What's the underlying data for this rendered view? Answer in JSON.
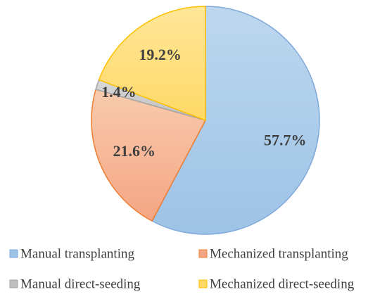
{
  "chart_data": {
    "type": "pie",
    "title": "",
    "series": [
      {
        "name": "Manual transplanting",
        "value": 57.7,
        "label": "57.7%",
        "color": "#9dc3e6",
        "color_light": "#bdd7ee",
        "stroke": "#7fa9d9"
      },
      {
        "name": "Mechanized transplanting",
        "value": 21.6,
        "label": "21.6%",
        "color": "#f4a583",
        "color_light": "#f8cbad",
        "stroke": "#ed7d31"
      },
      {
        "name": "Manual direct-seeding",
        "value": 1.4,
        "label": "1.4%",
        "color": "#bfbfbf",
        "color_light": "#d9d9d9",
        "stroke": "#a5a5a5"
      },
      {
        "name": "Mechanized direct-seeding",
        "value": 19.2,
        "label": "19.2%",
        "color": "#ffd966",
        "color_light": "#ffe699",
        "stroke": "#ffc000"
      }
    ],
    "start": "12 o'clock",
    "direction": "clockwise",
    "legend_position": "bottom"
  }
}
